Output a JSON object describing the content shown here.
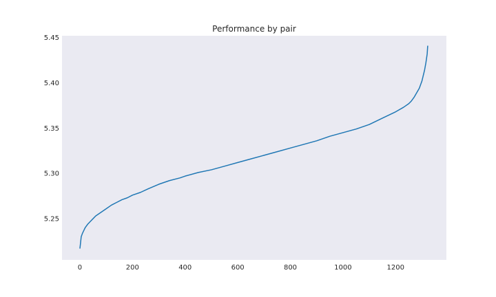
{
  "chart_data": {
    "type": "line",
    "title": "Performance by pair",
    "xlabel": "",
    "ylabel": "",
    "xlim": [
      -68,
      1393
    ],
    "ylim": [
      5.2045,
      5.452
    ],
    "xticks": [
      0,
      200,
      400,
      600,
      800,
      1000,
      1200
    ],
    "xtick_labels": [
      "0",
      "200",
      "400",
      "600",
      "800",
      "1000",
      "1200"
    ],
    "yticks": [
      5.25,
      5.3,
      5.35,
      5.4,
      5.45
    ],
    "ytick_labels": [
      "5.25",
      "5.30",
      "5.35",
      "5.40",
      "5.45"
    ],
    "grid": false,
    "legend": "none",
    "series": [
      {
        "color": "#1f77b4",
        "x": [
          0,
          2,
          5,
          10,
          15,
          20,
          30,
          40,
          50,
          60,
          80,
          100,
          120,
          140,
          160,
          180,
          200,
          230,
          260,
          300,
          340,
          380,
          400,
          450,
          500,
          550,
          600,
          650,
          700,
          750,
          800,
          850,
          900,
          950,
          1000,
          1050,
          1100,
          1150,
          1200,
          1230,
          1250,
          1260,
          1270,
          1280,
          1290,
          1295,
          1300,
          1305,
          1310,
          1315,
          1320,
          1322
        ],
        "y": [
          5.217,
          5.222,
          5.23,
          5.234,
          5.237,
          5.24,
          5.244,
          5.247,
          5.25,
          5.253,
          5.257,
          5.261,
          5.265,
          5.268,
          5.271,
          5.273,
          5.276,
          5.279,
          5.283,
          5.288,
          5.292,
          5.295,
          5.297,
          5.301,
          5.304,
          5.308,
          5.312,
          5.316,
          5.32,
          5.324,
          5.328,
          5.332,
          5.336,
          5.341,
          5.345,
          5.349,
          5.354,
          5.361,
          5.368,
          5.373,
          5.377,
          5.38,
          5.384,
          5.389,
          5.394,
          5.398,
          5.402,
          5.408,
          5.414,
          5.422,
          5.432,
          5.441
        ]
      }
    ]
  }
}
